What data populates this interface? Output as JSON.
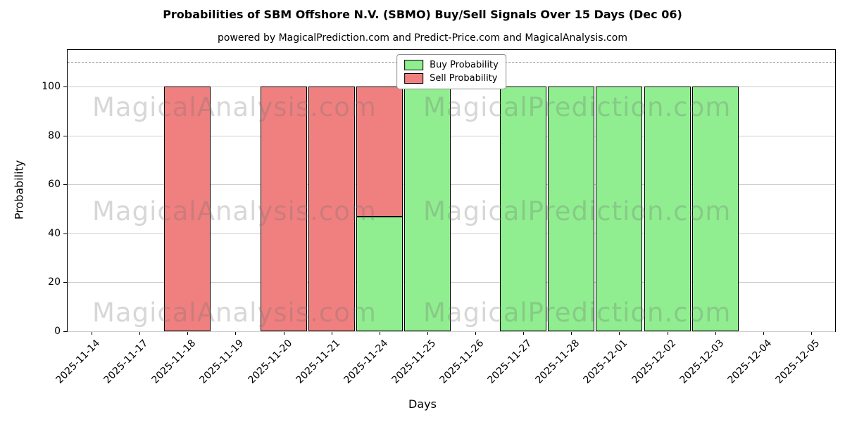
{
  "watermarks": {
    "left_text": "MagicalAnalysis.com",
    "right_text": "MagicalPrediction.com"
  },
  "chart_data": {
    "type": "bar",
    "stacked": true,
    "title": "Probabilities of SBM Offshore N.V. (SBMO) Buy/Sell Signals Over 15 Days (Dec 06)",
    "subtitle": "powered by MagicalPrediction.com and Predict-Price.com and MagicalAnalysis.com",
    "xlabel": "Days",
    "ylabel": "Probability",
    "ylim": [
      0,
      115
    ],
    "yticks": [
      0,
      20,
      40,
      60,
      80,
      100
    ],
    "grid": true,
    "dashed_line_y": 110,
    "legend_position": "upper center",
    "background_color": "#ffffff",
    "bar_edge_color": "#000000",
    "categories": [
      "2025-11-14",
      "2025-11-17",
      "2025-11-18",
      "2025-11-19",
      "2025-11-20",
      "2025-11-21",
      "2025-11-24",
      "2025-11-25",
      "2025-11-26",
      "2025-11-27",
      "2025-11-28",
      "2025-12-01",
      "2025-12-02",
      "2025-12-03",
      "2025-12-04",
      "2025-12-05"
    ],
    "series": [
      {
        "name": "Buy Probability",
        "color": "#90ee90",
        "values": [
          0,
          0,
          0,
          0,
          0,
          0,
          47,
          100,
          0,
          100,
          100,
          100,
          100,
          100,
          0,
          0
        ]
      },
      {
        "name": "Sell Probability",
        "color": "#f08080",
        "values": [
          0,
          0,
          100,
          0,
          100,
          100,
          53,
          0,
          0,
          0,
          0,
          0,
          0,
          0,
          0,
          0
        ]
      }
    ]
  }
}
